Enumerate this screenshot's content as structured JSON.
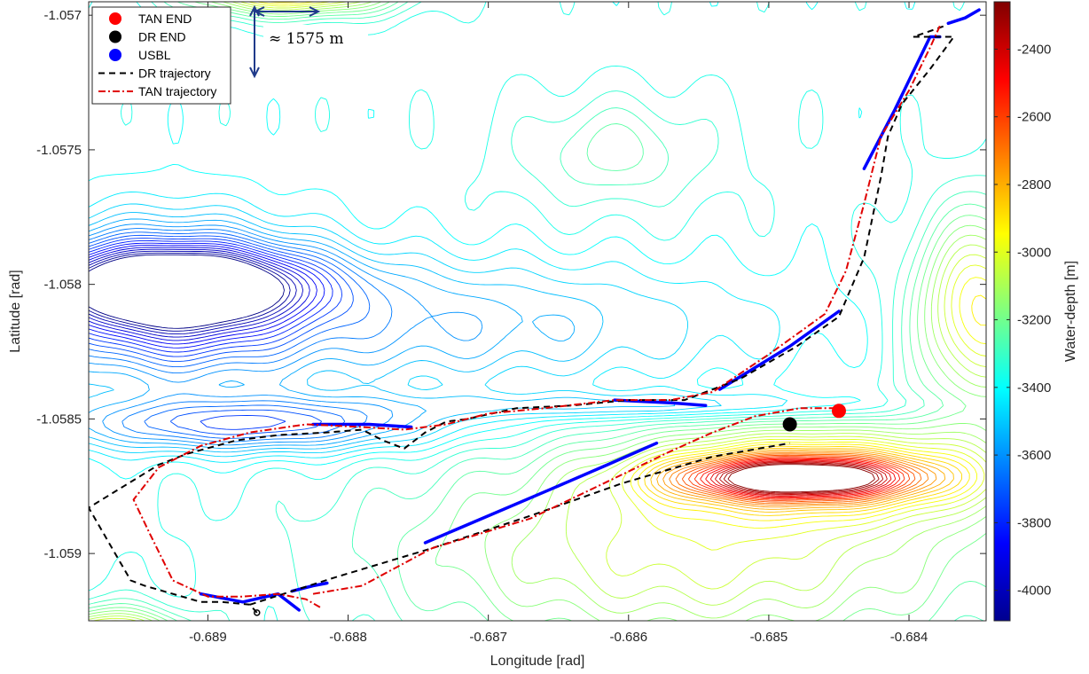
{
  "chart_data": {
    "type": "contour",
    "xlabel": "Longitude [rad]",
    "ylabel": "Latitude [rad]",
    "colorbar_label": "Water-depth [m]",
    "xlim": [
      -0.68985,
      -0.68345
    ],
    "ylim": [
      -1.05925,
      -1.05695
    ],
    "x_ticks": [
      -0.689,
      -0.688,
      -0.687,
      -0.686,
      -0.685,
      -0.684
    ],
    "x_tick_labels": [
      "-0.689",
      "-0.688",
      "-0.687",
      "-0.686",
      "-0.685",
      "-0.684"
    ],
    "y_ticks": [
      -1.057,
      -1.0575,
      -1.058,
      -1.0585,
      -1.059
    ],
    "y_tick_labels": [
      "-1.057",
      "-1.0575",
      "-1.058",
      "-1.0585",
      "-1.059"
    ],
    "colorbar_range": [
      -4090,
      -2260
    ],
    "colorbar_ticks": [
      -2400,
      -2600,
      -2800,
      -3000,
      -3200,
      -3400,
      -3600,
      -3800,
      -4000
    ],
    "colorbar_tick_labels": [
      "-2400",
      "-2600",
      "-2800",
      "-3000",
      "-3200",
      "-3400",
      "-3600",
      "-3800",
      "-4000"
    ],
    "colormap": "jet",
    "contour_interval_m": 40,
    "grid": false,
    "legend_position": "top-left",
    "legend": [
      {
        "label": "TAN END",
        "marker": "filled-circle",
        "color": "#ff0000"
      },
      {
        "label": "DR END",
        "marker": "filled-circle",
        "color": "#000000"
      },
      {
        "label": "USBL",
        "marker": "filled-circle",
        "color": "#0000ff"
      },
      {
        "label": "DR trajectory",
        "line": "dashed",
        "color": "#000000"
      },
      {
        "label": "TAN trajectory",
        "line": "dash-dot",
        "color": "#e00000"
      }
    ],
    "annotation": {
      "text": "≈ 1575 m"
    },
    "bathymetry_features": [
      {
        "kind": "basin",
        "center": [
          -0.6892,
          -1.058
        ],
        "depth": -4050,
        "rx": 0.00095,
        "ry": 0.00013
      },
      {
        "kind": "basin",
        "center": [
          -0.6893,
          -1.05805
        ],
        "depth": -3900,
        "rx": 0.0009,
        "ry": 0.00026
      },
      {
        "kind": "basin",
        "center": [
          -0.6887,
          -1.05852
        ],
        "depth": -3760,
        "rx": 0.0013,
        "ry": 0.0001
      },
      {
        "kind": "basin",
        "center": [
          -0.6875,
          -1.05815
        ],
        "depth": -3600,
        "rx": 0.0022,
        "ry": 0.00024
      },
      {
        "kind": "plateau",
        "center": [
          -0.6861,
          -1.0576
        ],
        "depth": -3350,
        "rx": 0.0011,
        "ry": 0.00034
      },
      {
        "kind": "plateau",
        "center": [
          -0.6861,
          -1.0575
        ],
        "depth": -3250,
        "rx": 0.0006,
        "ry": 0.00018
      },
      {
        "kind": "channel",
        "center": [
          -0.6858,
          -1.05845
        ],
        "depth": -3560,
        "rx": 0.0016,
        "ry": 5e-05
      },
      {
        "kind": "ridge",
        "center": [
          -0.6848,
          -1.05872
        ],
        "depth": -2580,
        "rx": 0.00075,
        "ry": 7e-05
      },
      {
        "kind": "ridge",
        "center": [
          -0.6846,
          -1.0587
        ],
        "depth": -2860,
        "rx": 0.0013,
        "ry": 0.00016
      },
      {
        "kind": "slope",
        "center": [
          -0.6855,
          -1.059
        ],
        "depth": -3020,
        "rx": 0.0022,
        "ry": 0.00038
      },
      {
        "kind": "ridge",
        "center": [
          -0.6835,
          -1.0581
        ],
        "depth": -2900,
        "rx": 0.00045,
        "ry": 0.00035
      },
      {
        "kind": "ridge",
        "center": [
          -0.6884,
          -1.0569
        ],
        "depth": -2750,
        "rx": 0.0007,
        "ry": 9e-05
      },
      {
        "kind": "ridge",
        "center": [
          -0.6897,
          -1.05935
        ],
        "depth": -2650,
        "rx": 0.0005,
        "ry": 0.00012
      }
    ],
    "series": [
      {
        "name": "USBL",
        "style": "points",
        "color": "#0000ff",
        "segments": [
          [
            [
              -0.68905,
              -1.05915
            ],
            [
              -0.68875,
              -1.05918
            ],
            [
              -0.6885,
              -1.05915
            ],
            [
              -0.68835,
              -1.05921
            ]
          ],
          [
            [
              -0.6884,
              -1.05914
            ],
            [
              -0.68825,
              -1.05912
            ],
            [
              -0.68815,
              -1.05911
            ]
          ],
          [
            [
              -0.68825,
              -1.05852
            ],
            [
              -0.68785,
              -1.05852
            ],
            [
              -0.68755,
              -1.05853
            ]
          ],
          [
            [
              -0.6861,
              -1.05843
            ],
            [
              -0.6857,
              -1.05844
            ],
            [
              -0.68545,
              -1.05845
            ]
          ],
          [
            [
              -0.68535,
              -1.05839
            ],
            [
              -0.68485,
              -1.05823
            ],
            [
              -0.6845,
              -1.0581
            ]
          ],
          [
            [
              -0.68745,
              -1.05896
            ],
            [
              -0.687,
              -1.05886
            ],
            [
              -0.68655,
              -1.05876
            ],
            [
              -0.68615,
              -1.05867
            ],
            [
              -0.6858,
              -1.05859
            ]
          ],
          [
            [
              -0.68432,
              -1.05757
            ],
            [
              -0.6841,
              -1.05735
            ],
            [
              -0.68385,
              -1.05708
            ],
            [
              -0.68378,
              -1.05708
            ]
          ],
          [
            [
              -0.68372,
              -1.05703
            ],
            [
              -0.6836,
              -1.05701
            ],
            [
              -0.6835,
              -1.05698
            ]
          ]
        ]
      },
      {
        "name": "DR trajectory",
        "style": "dashed",
        "color": "#000000",
        "points": [
          [
            -0.68865,
            -1.05922
          ],
          [
            -0.6887,
            -1.05919
          ],
          [
            -0.6889,
            -1.05918
          ],
          [
            -0.68905,
            -1.05918
          ],
          [
            -0.68945,
            -1.05912
          ],
          [
            -0.68955,
            -1.0591
          ],
          [
            -0.68985,
            -1.05883
          ],
          [
            -0.6896,
            -1.05875
          ],
          [
            -0.68935,
            -1.05867
          ],
          [
            -0.68915,
            -1.05863
          ],
          [
            -0.6888,
            -1.05858
          ],
          [
            -0.6885,
            -1.05856
          ],
          [
            -0.68815,
            -1.05855
          ],
          [
            -0.6879,
            -1.05854
          ],
          [
            -0.68775,
            -1.05858
          ],
          [
            -0.6876,
            -1.05861
          ],
          [
            -0.68745,
            -1.05855
          ],
          [
            -0.6873,
            -1.05851
          ],
          [
            -0.68715,
            -1.0585
          ],
          [
            -0.6868,
            -1.05846
          ],
          [
            -0.6864,
            -1.05845
          ],
          [
            -0.686,
            -1.05843
          ],
          [
            -0.6856,
            -1.05843
          ],
          [
            -0.6852,
            -1.05835
          ],
          [
            -0.6848,
            -1.05823
          ],
          [
            -0.6845,
            -1.05812
          ],
          [
            -0.68432,
            -1.0579
          ],
          [
            -0.6842,
            -1.0576
          ],
          [
            -0.68415,
            -1.05745
          ],
          [
            -0.68405,
            -1.05733
          ],
          [
            -0.68385,
            -1.0572
          ],
          [
            -0.68368,
            -1.05708
          ],
          [
            -0.68378,
            -1.05708
          ],
          [
            -0.68397,
            -1.05708
          ],
          [
            -0.6838,
            -1.05705
          ],
          [
            -0.68375,
            -1.05704
          ]
        ]
      },
      {
        "name": "DR trajectory return",
        "style": "dashed",
        "color": "#000000",
        "points": [
          [
            -0.6887,
            -1.05919
          ],
          [
            -0.6881,
            -1.05909
          ],
          [
            -0.6874,
            -1.05898
          ],
          [
            -0.6867,
            -1.05886
          ],
          [
            -0.68605,
            -1.05874
          ],
          [
            -0.6854,
            -1.05864
          ],
          [
            -0.68485,
            -1.05859
          ]
        ]
      },
      {
        "name": "TAN trajectory",
        "style": "dash-dot",
        "color": "#e00000",
        "points": [
          [
            -0.6882,
            -1.0592
          ],
          [
            -0.6883,
            -1.05917
          ],
          [
            -0.6885,
            -1.05915
          ],
          [
            -0.68875,
            -1.05916
          ],
          [
            -0.689,
            -1.05916
          ],
          [
            -0.68925,
            -1.0591
          ],
          [
            -0.68942,
            -1.05892
          ],
          [
            -0.68953,
            -1.0588
          ],
          [
            -0.68935,
            -1.05868
          ],
          [
            -0.68905,
            -1.0586
          ],
          [
            -0.6887,
            -1.05855
          ],
          [
            -0.6883,
            -1.05852
          ],
          [
            -0.6879,
            -1.05853
          ],
          [
            -0.6876,
            -1.05854
          ],
          [
            -0.6873,
            -1.05852
          ],
          [
            -0.687,
            -1.05848
          ],
          [
            -0.6866,
            -1.05846
          ],
          [
            -0.6861,
            -1.05843
          ],
          [
            -0.6857,
            -1.05843
          ],
          [
            -0.6854,
            -1.0584
          ],
          [
            -0.685,
            -1.05826
          ],
          [
            -0.6846,
            -1.05811
          ],
          [
            -0.68445,
            -1.05795
          ],
          [
            -0.68432,
            -1.0577
          ],
          [
            -0.6842,
            -1.05745
          ],
          [
            -0.684,
            -1.05728
          ],
          [
            -0.68385,
            -1.05712
          ],
          [
            -0.68378,
            -1.05704
          ]
        ]
      },
      {
        "name": "TAN trajectory return",
        "style": "dash-dot",
        "color": "#e00000",
        "points": [
          [
            -0.68825,
            -1.05915
          ],
          [
            -0.6879,
            -1.05912
          ],
          [
            -0.6874,
            -1.05898
          ],
          [
            -0.6867,
            -1.05887
          ],
          [
            -0.6861,
            -1.05872
          ],
          [
            -0.6857,
            -1.05862
          ],
          [
            -0.6854,
            -1.05855
          ],
          [
            -0.6851,
            -1.05849
          ],
          [
            -0.68478,
            -1.05846
          ],
          [
            -0.6845,
            -1.05846
          ]
        ]
      }
    ],
    "markers": [
      {
        "name": "TAN END",
        "x": -0.6845,
        "y": -1.05847,
        "color": "#ff0000"
      },
      {
        "name": "DR END",
        "x": -0.68485,
        "y": -1.05852,
        "color": "#000000"
      }
    ]
  }
}
